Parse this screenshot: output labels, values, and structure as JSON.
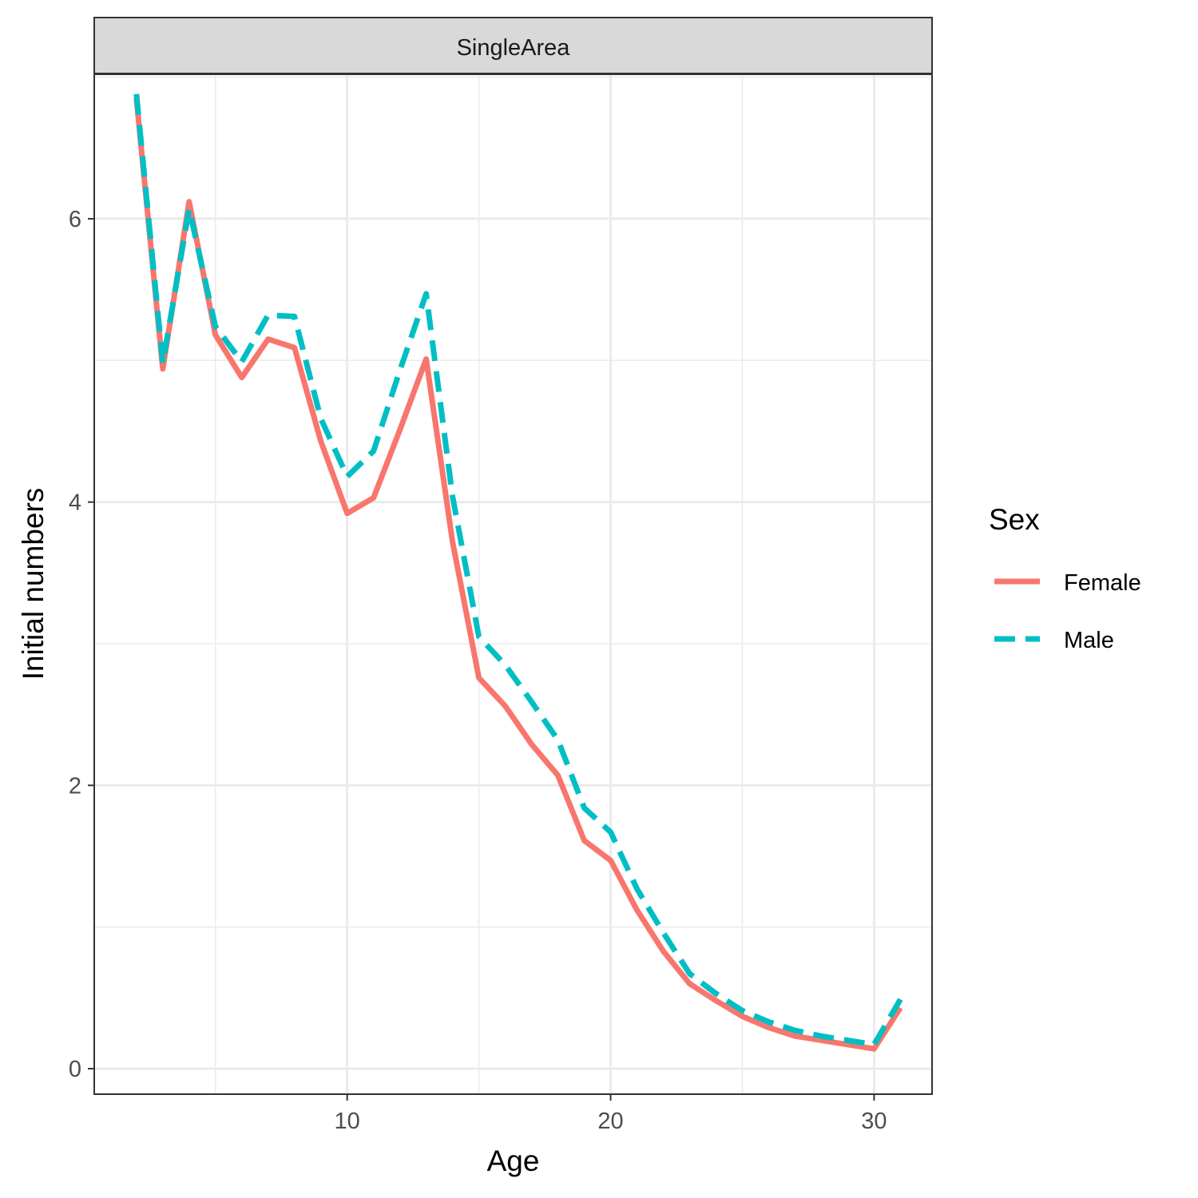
{
  "chart_data": {
    "type": "line",
    "facet_label": "SingleArea",
    "xlabel": "Age",
    "ylabel": "Initial numbers",
    "xlim": [
      0.4,
      32.2
    ],
    "ylim": [
      -0.18,
      7.02
    ],
    "x_ticks": [
      10,
      20,
      30
    ],
    "x_minor_ticks": [
      5,
      15,
      25
    ],
    "y_ticks": [
      0,
      2,
      4,
      6
    ],
    "y_minor_ticks": [
      1,
      3,
      5,
      7
    ],
    "grid": true,
    "legend": {
      "title": "Sex",
      "position": "right"
    },
    "x": [
      2,
      3,
      4,
      5,
      6,
      7,
      8,
      9,
      10,
      11,
      12,
      13,
      14,
      15,
      16,
      17,
      18,
      19,
      20,
      21,
      22,
      23,
      24,
      25,
      26,
      27,
      28,
      29,
      30,
      31
    ],
    "series": [
      {
        "name": "Female",
        "color": "#F8766D",
        "dash": "solid",
        "values": [
          6.85,
          4.94,
          6.12,
          5.18,
          4.88,
          5.15,
          5.09,
          4.43,
          3.92,
          4.03,
          4.51,
          5.01,
          3.72,
          2.76,
          2.56,
          2.29,
          2.07,
          1.61,
          1.47,
          1.12,
          0.83,
          0.6,
          0.48,
          0.37,
          0.29,
          0.23,
          0.2,
          0.17,
          0.14,
          0.43
        ]
      },
      {
        "name": "Male",
        "color": "#00BFC4",
        "dash": "dashed",
        "values": [
          6.88,
          4.98,
          6.07,
          5.24,
          4.99,
          5.32,
          5.31,
          4.59,
          4.18,
          4.36,
          4.93,
          5.47,
          4.04,
          3.05,
          2.85,
          2.59,
          2.32,
          1.84,
          1.67,
          1.27,
          0.96,
          0.67,
          0.53,
          0.41,
          0.33,
          0.27,
          0.23,
          0.2,
          0.17,
          0.49
        ]
      }
    ]
  }
}
